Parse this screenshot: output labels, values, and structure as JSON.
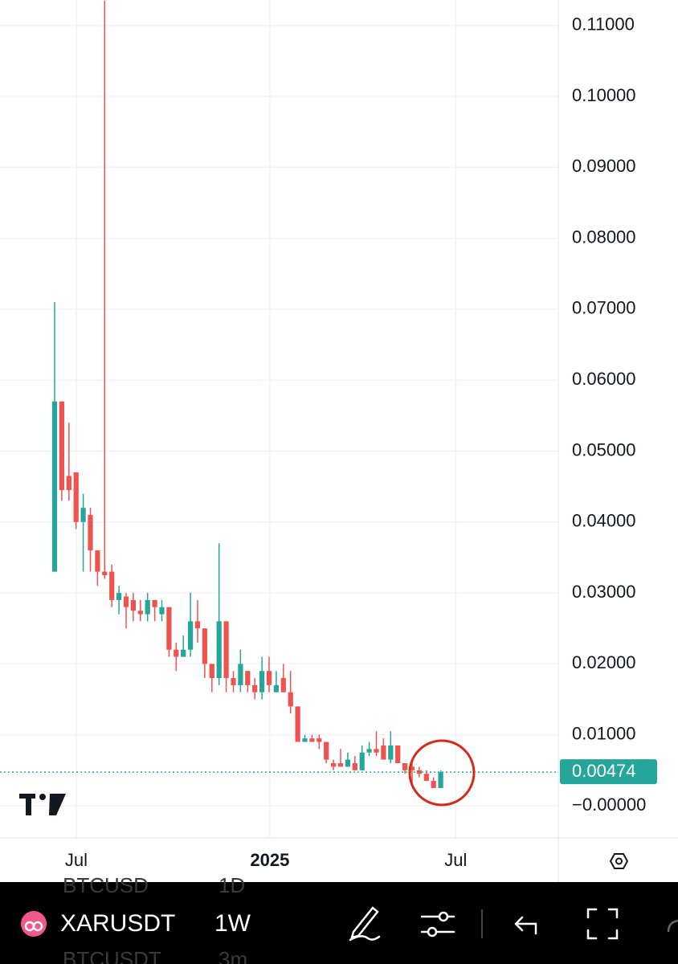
{
  "chart_data": {
    "type": "candlestick",
    "categories": [
      null,
      null,
      null,
      null,
      null,
      null,
      null,
      null,
      null,
      null,
      null,
      null,
      null,
      null,
      null,
      null,
      null,
      null,
      null,
      null,
      null,
      null,
      null,
      null,
      null,
      null,
      null,
      null,
      null,
      null,
      null,
      null,
      null,
      null,
      null,
      null,
      null,
      null,
      null,
      null,
      null,
      null,
      null,
      null,
      null,
      null,
      null,
      null,
      null,
      null,
      null,
      null,
      null,
      null,
      null
    ],
    "open": [
      0.033,
      0.057,
      0.0465,
      0.047,
      0.04,
      0.041,
      0.036,
      0.033,
      0.033,
      0.029,
      0.0295,
      0.029,
      0.0275,
      0.027,
      0.029,
      0.027,
      0.028,
      0.022,
      0.021,
      0.022,
      0.026,
      0.025,
      0.02,
      0.018,
      0.026,
      0.018,
      0.017,
      0.019,
      0.017,
      0.016,
      0.019,
      0.016,
      0.018,
      0.016,
      0.014,
      0.009,
      0.0095,
      0.0095,
      0.009,
      0.006,
      0.006,
      0.0055,
      0.006,
      0.005,
      0.0075,
      0.008,
      0.0085,
      0.0065,
      0.0085,
      0.006,
      0.0055,
      0.005,
      0.0045,
      0.0035,
      0.0025
    ],
    "high": [
      0.071,
      0.057,
      0.054,
      0.047,
      0.044,
      0.042,
      0.036,
      0.1135,
      0.034,
      0.031,
      0.03,
      0.03,
      0.029,
      0.03,
      0.029,
      0.029,
      0.028,
      0.023,
      0.024,
      0.03,
      0.029,
      0.025,
      0.02,
      0.037,
      0.026,
      0.019,
      0.022,
      0.019,
      0.018,
      0.021,
      0.021,
      0.019,
      0.02,
      0.019,
      0.014,
      0.01,
      0.01,
      0.01,
      0.009,
      0.0065,
      0.008,
      0.0075,
      0.007,
      0.0085,
      0.009,
      0.0105,
      0.0095,
      0.0105,
      0.0085,
      0.006,
      0.006,
      0.0055,
      0.005,
      0.004,
      0.005
    ],
    "low": [
      0.033,
      0.043,
      0.043,
      0.039,
      0.033,
      0.033,
      0.031,
      0.032,
      0.028,
      0.027,
      0.025,
      0.026,
      0.026,
      0.026,
      0.026,
      0.026,
      0.021,
      0.019,
      0.021,
      0.021,
      0.023,
      0.018,
      0.016,
      0.017,
      0.016,
      0.016,
      0.016,
      0.016,
      0.015,
      0.015,
      0.016,
      0.016,
      0.016,
      0.013,
      0.009,
      0.009,
      0.009,
      0.008,
      0.006,
      0.005,
      0.0055,
      0.0055,
      0.005,
      0.005,
      0.007,
      0.007,
      0.0065,
      0.006,
      0.006,
      0.0045,
      0.003,
      0.004,
      0.0035,
      0.0025,
      0.0025
    ],
    "close": [
      0.057,
      0.0445,
      0.0445,
      0.04,
      0.042,
      0.036,
      0.033,
      0.0325,
      0.029,
      0.03,
      0.028,
      0.0275,
      0.027,
      0.029,
      0.028,
      0.028,
      0.022,
      0.021,
      0.022,
      0.026,
      0.025,
      0.02,
      0.018,
      0.026,
      0.018,
      0.017,
      0.02,
      0.017,
      0.016,
      0.019,
      0.017,
      0.017,
      0.016,
      0.014,
      0.009,
      0.0095,
      0.009,
      0.009,
      0.0065,
      0.0055,
      0.0055,
      0.0065,
      0.005,
      0.0075,
      0.008,
      0.0075,
      0.0065,
      0.0085,
      0.006,
      0.005,
      0.005,
      0.0045,
      0.0035,
      0.0025,
      0.00474
    ],
    "up_color": "#26a69a",
    "down_color": "#ef5350",
    "xlim": [
      -7.64,
      70.45
    ],
    "xticks": [
      {
        "value": 3.03,
        "label": "Jul"
      },
      {
        "value": 30.1,
        "label": "2025"
      },
      {
        "value": 56.1,
        "label": "Jul"
      }
    ],
    "ylim": [
      -0.00453,
      0.11359
    ],
    "yticks": [
      {
        "value": 0,
        "label": "−0.00000"
      },
      {
        "value": 0.01,
        "label": "0.01000"
      },
      {
        "value": 0.02,
        "label": "0.02000"
      },
      {
        "value": 0.03,
        "label": "0.03000"
      },
      {
        "value": 0.04,
        "label": "0.04000"
      },
      {
        "value": 0.05,
        "label": "0.05000"
      },
      {
        "value": 0.06,
        "label": "0.06000"
      },
      {
        "value": 0.07,
        "label": "0.07000"
      },
      {
        "value": 0.08,
        "label": "0.08000"
      },
      {
        "value": 0.09,
        "label": "0.09000"
      },
      {
        "value": 0.1,
        "label": "0.10000"
      },
      {
        "value": 0.11,
        "label": "0.11000"
      }
    ],
    "grid": true,
    "last_price": 0.00474
  },
  "toolbar": {
    "symbol": "XARUSDT",
    "interval": "1W",
    "ghost": [
      "BTCUSD",
      "1D",
      "BTCUSDT",
      "3m"
    ]
  }
}
